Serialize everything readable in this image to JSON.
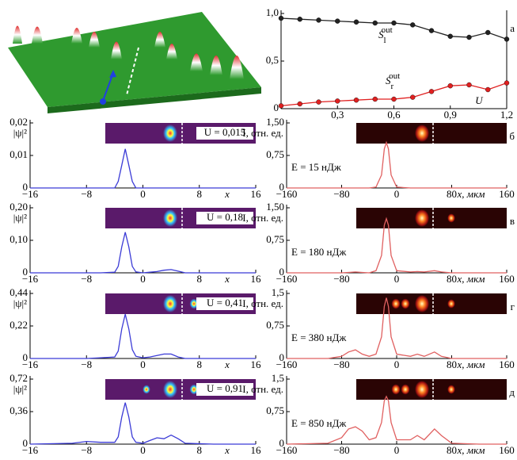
{
  "chart_data": [
    {
      "type": "line",
      "panel_label": "а",
      "x_label": "U",
      "x": [
        0,
        0.1,
        0.2,
        0.3,
        0.4,
        0.5,
        0.6,
        0.7,
        0.8,
        0.9,
        1.0,
        1.1,
        1.2
      ],
      "series": [
        {
          "name": "S",
          "subscript": "l",
          "superscript": "out",
          "color": "#222222",
          "values": [
            0.95,
            0.94,
            0.93,
            0.92,
            0.91,
            0.9,
            0.9,
            0.88,
            0.82,
            0.76,
            0.75,
            0.8,
            0.73
          ]
        },
        {
          "name": "S",
          "subscript": "r",
          "superscript": "out",
          "color": "#e02020",
          "values": [
            0.03,
            0.05,
            0.07,
            0.08,
            0.09,
            0.1,
            0.1,
            0.12,
            0.18,
            0.24,
            0.25,
            0.2,
            0.27
          ]
        }
      ],
      "xlim": [
        0,
        1.2
      ],
      "xticks": [
        {
          "value": 0.3,
          "label": "0,3"
        },
        {
          "value": 0.6,
          "label": "0,6"
        },
        {
          "value": 0.9,
          "label": "0,9"
        },
        {
          "value": 1.2,
          "label": "1,2"
        }
      ],
      "ylim": [
        0,
        1.0
      ],
      "yticks": [
        0,
        {
          "value": 0.5,
          "label": "0,5"
        },
        {
          "value": 1.0,
          "label": "1,0"
        }
      ]
    },
    {
      "type": "line",
      "y_label": "|ψ|²",
      "x_label": "x",
      "annotation": "U = 0,015",
      "x": [
        -16,
        -10,
        -8,
        -6,
        -4,
        -3.5,
        -3,
        -2.5,
        -2,
        -1.5,
        -1,
        0,
        1,
        2,
        3,
        4,
        5,
        6,
        10,
        16
      ],
      "series": [
        {
          "color": "#3b3bd6",
          "values": [
            0,
            0,
            0,
            0,
            0,
            0.002,
            0.007,
            0.012,
            0.007,
            0.002,
            0,
            0,
            0,
            0,
            0,
            0,
            0,
            0,
            0,
            0
          ]
        }
      ],
      "xlim": [
        -16,
        16
      ],
      "xticks": [
        {
          "value": -16,
          "label": "−16"
        },
        {
          "value": -8,
          "label": "−8"
        },
        0,
        8,
        16
      ],
      "ylim": [
        0,
        0.02
      ],
      "yticks": [
        0,
        {
          "value": 0.01,
          "label": "0,01"
        },
        {
          "value": 0.02,
          "label": "0,02"
        }
      ]
    },
    {
      "type": "line",
      "panel_label": "б",
      "y_label": "I, отн. ед.",
      "x_label": "x, мкм",
      "annotation": "E = 15 нДж",
      "x": [
        -160,
        -100,
        -80,
        -70,
        -60,
        -50,
        -40,
        -30,
        -22,
        -18,
        -15,
        -12,
        -8,
        0,
        20,
        30,
        40,
        55,
        65,
        80,
        120,
        160
      ],
      "series": [
        {
          "color": "#e06060",
          "values": [
            0,
            0,
            0,
            0,
            0,
            0,
            0,
            0.02,
            0.3,
            0.9,
            1.05,
            0.9,
            0.3,
            0.02,
            0,
            0,
            0,
            0,
            0,
            0,
            0,
            0
          ]
        }
      ],
      "xlim": [
        -160,
        160
      ],
      "xticks": [
        {
          "value": -160,
          "label": "−160"
        },
        {
          "value": -80,
          "label": "−80"
        },
        0,
        80,
        160
      ],
      "ylim": [
        0,
        1.5
      ],
      "yticks": [
        0,
        {
          "value": 0.75,
          "label": "0,75"
        },
        {
          "value": 1.5,
          "label": "1,50"
        }
      ]
    },
    {
      "type": "line",
      "y_label": "|ψ|²",
      "x_label": "x",
      "annotation": "U = 0,18",
      "x": [
        -16,
        -10,
        -8,
        -6,
        -4,
        -3.5,
        -3,
        -2.5,
        -2,
        -1.5,
        -1,
        0,
        1,
        2,
        3,
        4,
        5,
        6,
        10,
        16
      ],
      "series": [
        {
          "color": "#3b3bd6",
          "values": [
            0,
            0,
            0,
            0,
            0.002,
            0.02,
            0.08,
            0.125,
            0.08,
            0.02,
            0.003,
            0,
            0.002,
            0.004,
            0.008,
            0.01,
            0.005,
            0,
            0,
            0
          ]
        }
      ],
      "xlim": [
        -16,
        16
      ],
      "xticks": [
        {
          "value": -16,
          "label": "−16"
        },
        {
          "value": -8,
          "label": "−8"
        },
        0,
        8,
        16
      ],
      "ylim": [
        0,
        0.2
      ],
      "yticks": [
        0,
        {
          "value": 0.1,
          "label": "0,10"
        },
        {
          "value": 0.2,
          "label": "0,20"
        }
      ]
    },
    {
      "type": "line",
      "panel_label": "в",
      "y_label": "I, отн. ед.",
      "x_label": "x, мкм",
      "annotation": "E = 180 нДж",
      "x": [
        -160,
        -100,
        -80,
        -70,
        -60,
        -50,
        -40,
        -30,
        -22,
        -18,
        -15,
        -12,
        -8,
        0,
        20,
        30,
        40,
        55,
        65,
        80,
        120,
        160
      ],
      "series": [
        {
          "color": "#e06060",
          "values": [
            0,
            0,
            0,
            0.01,
            0.02,
            0.01,
            0,
            0.05,
            0.4,
            1.1,
            1.25,
            1.1,
            0.4,
            0.05,
            0.02,
            0.03,
            0.02,
            0.05,
            0.02,
            0,
            0,
            0
          ]
        }
      ],
      "xlim": [
        -160,
        160
      ],
      "xticks": [
        {
          "value": -160,
          "label": "−160"
        },
        {
          "value": -80,
          "label": "−80"
        },
        0,
        80,
        160
      ],
      "ylim": [
        0,
        1.5
      ],
      "yticks": [
        0,
        {
          "value": 0.75,
          "label": "0,75"
        },
        {
          "value": 1.5,
          "label": "1,50"
        }
      ]
    },
    {
      "type": "line",
      "y_label": "|ψ|²",
      "x_label": "x",
      "annotation": "U = 0,41",
      "x": [
        -16,
        -10,
        -8,
        -6,
        -4,
        -3.5,
        -3,
        -2.5,
        -2,
        -1.5,
        -1,
        0,
        1,
        2,
        3,
        4,
        5,
        6,
        10,
        16
      ],
      "series": [
        {
          "color": "#3b3bd6",
          "values": [
            0,
            0,
            0,
            0.005,
            0.01,
            0.05,
            0.2,
            0.3,
            0.2,
            0.06,
            0.015,
            0.005,
            0.01,
            0.02,
            0.03,
            0.03,
            0.01,
            0,
            0,
            0
          ]
        }
      ],
      "xlim": [
        -16,
        16
      ],
      "xticks": [
        {
          "value": -16,
          "label": "−16"
        },
        {
          "value": -8,
          "label": "−8"
        },
        0,
        8,
        16
      ],
      "ylim": [
        0,
        0.44
      ],
      "yticks": [
        0,
        {
          "value": 0.22,
          "label": "0,22"
        },
        {
          "value": 0.44,
          "label": "0,44"
        }
      ]
    },
    {
      "type": "line",
      "panel_label": "г",
      "y_label": "I, отн. ед.",
      "x_label": "x, мкм",
      "annotation": "E = 380 нДж",
      "x": [
        -160,
        -100,
        -80,
        -70,
        -60,
        -50,
        -40,
        -30,
        -22,
        -18,
        -15,
        -12,
        -8,
        0,
        20,
        30,
        40,
        55,
        65,
        80,
        120,
        160
      ],
      "series": [
        {
          "color": "#e06060",
          "values": [
            0,
            0,
            0.05,
            0.15,
            0.2,
            0.1,
            0.05,
            0.1,
            0.5,
            1.2,
            1.4,
            1.2,
            0.5,
            0.1,
            0.05,
            0.1,
            0.05,
            0.15,
            0.05,
            0,
            0,
            0
          ]
        }
      ],
      "xlim": [
        -160,
        160
      ],
      "xticks": [
        {
          "value": -160,
          "label": "−160"
        },
        {
          "value": -80,
          "label": "−80"
        },
        0,
        80,
        160
      ],
      "ylim": [
        0,
        1.5
      ],
      "yticks": [
        0,
        {
          "value": 0.75,
          "label": "0,75"
        },
        {
          "value": 1.5,
          "label": "1,5"
        }
      ]
    },
    {
      "type": "line",
      "y_label": "|ψ|²",
      "x_label": "x",
      "annotation": "U = 0,91",
      "x": [
        -16,
        -10,
        -8,
        -6,
        -4,
        -3.5,
        -3,
        -2.5,
        -2,
        -1.5,
        -1,
        0,
        1,
        2,
        3,
        4,
        5,
        6,
        10,
        16
      ],
      "series": [
        {
          "color": "#3b3bd6",
          "values": [
            0,
            0.01,
            0.03,
            0.02,
            0.02,
            0.08,
            0.3,
            0.46,
            0.3,
            0.08,
            0.02,
            0.01,
            0.04,
            0.07,
            0.06,
            0.1,
            0.06,
            0.01,
            0,
            0
          ]
        }
      ],
      "xlim": [
        -16,
        16
      ],
      "xticks": [
        {
          "value": -16,
          "label": "−16"
        },
        {
          "value": -8,
          "label": "−8"
        },
        0,
        8,
        16
      ],
      "ylim": [
        0,
        0.72
      ],
      "yticks": [
        0,
        {
          "value": 0.36,
          "label": "0,36"
        },
        {
          "value": 0.72,
          "label": "0,72"
        }
      ]
    },
    {
      "type": "line",
      "panel_label": "д",
      "y_label": "I, отн. ед.",
      "x_label": "x, мкм",
      "annotation": "E = 850 нДж",
      "x": [
        -160,
        -100,
        -80,
        -70,
        -60,
        -50,
        -40,
        -30,
        -22,
        -18,
        -15,
        -12,
        -8,
        0,
        20,
        30,
        40,
        55,
        65,
        80,
        120,
        160
      ],
      "series": [
        {
          "color": "#e06060",
          "values": [
            0,
            0.02,
            0.15,
            0.35,
            0.4,
            0.3,
            0.1,
            0.15,
            0.5,
            1.0,
            1.1,
            1.0,
            0.5,
            0.1,
            0.1,
            0.2,
            0.1,
            0.35,
            0.2,
            0.02,
            0,
            0
          ]
        }
      ],
      "xlim": [
        -160,
        160
      ],
      "xticks": [
        {
          "value": -160,
          "label": "−160"
        },
        {
          "value": -80,
          "label": "−80"
        },
        0,
        80,
        160
      ],
      "ylim": [
        0,
        1.5
      ],
      "yticks": [
        0,
        {
          "value": 0.75,
          "label": "0,75"
        },
        {
          "value": 1.5,
          "label": "1,5"
        }
      ]
    }
  ]
}
